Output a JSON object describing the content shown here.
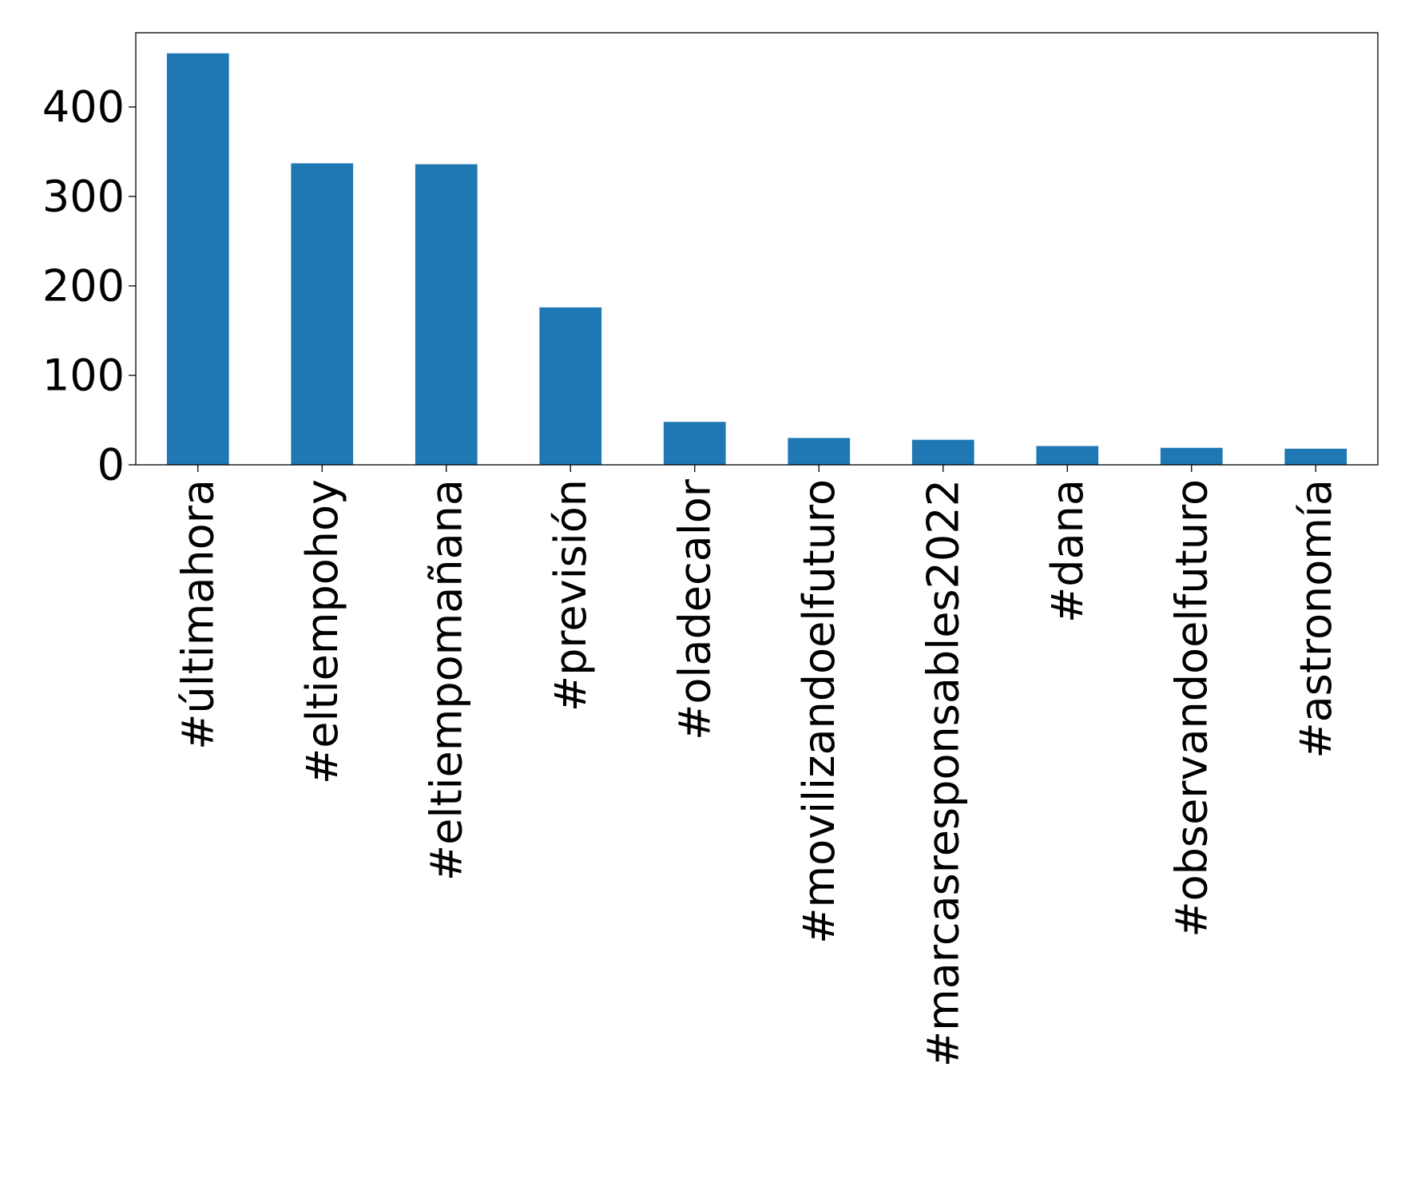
{
  "chart_data": {
    "type": "bar",
    "title": "",
    "xlabel": "",
    "ylabel": "",
    "categories": [
      "#últimahora",
      "#eltiempohoy",
      "#eltiempomañana",
      "#previsión",
      "#oladecalor",
      "#movilizandoelfuturo",
      "#marcasresponsables2022",
      "#dana",
      "#observandoelfuturo",
      "#astronomía"
    ],
    "values": [
      460,
      337,
      336,
      176,
      48,
      30,
      28,
      21,
      19,
      18
    ],
    "ylim": [
      0,
      483
    ],
    "yticks": [
      0,
      100,
      200,
      300,
      400
    ],
    "ytick_labels": [
      "0",
      "100",
      "200",
      "300",
      "400"
    ],
    "grid": false,
    "bar_color": "#1f77b4"
  }
}
